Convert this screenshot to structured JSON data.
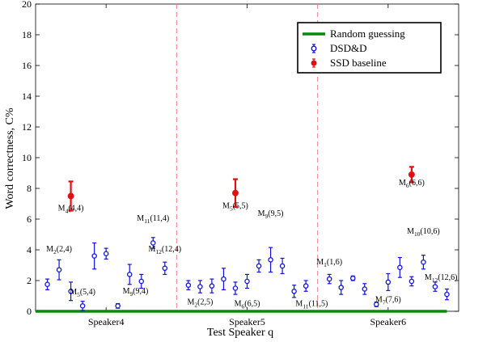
{
  "chart_data": {
    "type": "scatter",
    "title": "",
    "xlabel": "Test Speaker q",
    "ylabel": "Word correctness, C%",
    "ylim": [
      0,
      20
    ],
    "yticks": [
      0,
      2,
      4,
      6,
      8,
      10,
      12,
      14,
      16,
      18,
      20
    ],
    "xlim": [
      0,
      36
    ],
    "categories": [
      "Speaker4",
      "Speaker5",
      "Speaker6"
    ],
    "category_positions": [
      6,
      18,
      30
    ],
    "dividers": [
      12,
      24
    ],
    "grid": false,
    "legend_position": "top-right",
    "colors": {
      "random": "#0a8a0a",
      "dsdd": "#1010e0",
      "ssd": "#e01010",
      "divider": "#f08080"
    },
    "series": [
      {
        "name": "Random guessing",
        "kind": "line",
        "x": [
          0,
          35
        ],
        "y": [
          0,
          0
        ]
      },
      {
        "name": "DSD&D",
        "kind": "errorbar",
        "points": [
          {
            "x": 1,
            "y": 1.75,
            "err": 0.35
          },
          {
            "x": 2,
            "y": 2.7,
            "err": 0.65
          },
          {
            "x": 3,
            "y": 1.3,
            "err": 0.6
          },
          {
            "x": 4,
            "y": 0.35,
            "err": 0.3
          },
          {
            "x": 5,
            "y": 3.6,
            "err": 0.85
          },
          {
            "x": 6,
            "y": 3.75,
            "err": 0.35
          },
          {
            "x": 7,
            "y": 0.35,
            "err": 0.15
          },
          {
            "x": 8,
            "y": 2.4,
            "err": 0.65
          },
          {
            "x": 9,
            "y": 1.95,
            "err": 0.45
          },
          {
            "x": 10,
            "y": 4.45,
            "err": 0.35
          },
          {
            "x": 11,
            "y": 2.8,
            "err": 0.4
          },
          {
            "x": 13,
            "y": 1.7,
            "err": 0.3
          },
          {
            "x": 14,
            "y": 1.6,
            "err": 0.4
          },
          {
            "x": 15,
            "y": 1.65,
            "err": 0.45
          },
          {
            "x": 16,
            "y": 2.1,
            "err": 0.7
          },
          {
            "x": 17,
            "y": 1.5,
            "err": 0.4
          },
          {
            "x": 18,
            "y": 1.95,
            "err": 0.45
          },
          {
            "x": 19,
            "y": 2.95,
            "err": 0.4
          },
          {
            "x": 20,
            "y": 3.35,
            "err": 0.8
          },
          {
            "x": 21,
            "y": 2.95,
            "err": 0.5
          },
          {
            "x": 22,
            "y": 1.3,
            "err": 0.4
          },
          {
            "x": 23,
            "y": 1.65,
            "err": 0.35
          },
          {
            "x": 25,
            "y": 2.1,
            "err": 0.3
          },
          {
            "x": 26,
            "y": 1.55,
            "err": 0.45
          },
          {
            "x": 27,
            "y": 2.15,
            "err": 0.15
          },
          {
            "x": 28,
            "y": 1.45,
            "err": 0.35
          },
          {
            "x": 29,
            "y": 0.45,
            "err": 0.15
          },
          {
            "x": 30,
            "y": 1.9,
            "err": 0.55
          },
          {
            "x": 31,
            "y": 2.85,
            "err": 0.65
          },
          {
            "x": 32,
            "y": 1.95,
            "err": 0.3
          },
          {
            "x": 33,
            "y": 3.2,
            "err": 0.45
          },
          {
            "x": 34,
            "y": 1.6,
            "err": 0.3
          },
          {
            "x": 35,
            "y": 1.1,
            "err": 0.35
          }
        ]
      },
      {
        "name": "SSD baseline",
        "kind": "errorbar",
        "points": [
          {
            "x": 3,
            "y": 7.5,
            "err": 0.95
          },
          {
            "x": 17,
            "y": 7.7,
            "err": 0.9
          },
          {
            "x": 32,
            "y": 8.9,
            "err": 0.5
          }
        ]
      }
    ],
    "annotations": [
      {
        "main": "M",
        "sub": "4",
        "rest": "(4,4)",
        "x": 3,
        "y": 6.55
      },
      {
        "main": "M",
        "sub": "5",
        "rest": "(5,5)",
        "x": 17,
        "y": 6.7
      },
      {
        "main": "M",
        "sub": "6",
        "rest": "(6,6)",
        "x": 32,
        "y": 8.2
      },
      {
        "main": "M",
        "sub": "2",
        "rest": "(2,4)",
        "x": 2,
        "y": 3.9
      },
      {
        "main": "M",
        "sub": "5",
        "rest": "(5,4)",
        "x": 4,
        "y": 1.1
      },
      {
        "main": "M",
        "sub": "9",
        "rest": "(9,4)",
        "x": 8.5,
        "y": 1.15
      },
      {
        "main": "M",
        "sub": "11",
        "rest": "(11,4)",
        "x": 10,
        "y": 5.9
      },
      {
        "main": "M",
        "sub": "12",
        "rest": "(12,4)",
        "x": 11,
        "y": 3.9
      },
      {
        "main": "M",
        "sub": "2",
        "rest": "(2,5)",
        "x": 14,
        "y": 0.45
      },
      {
        "main": "M",
        "sub": "6",
        "rest": "(6,5)",
        "x": 18,
        "y": 0.35
      },
      {
        "main": "M",
        "sub": "9",
        "rest": "(9,5)",
        "x": 20,
        "y": 6.2
      },
      {
        "main": "M",
        "sub": "11",
        "rest": "(11,5)",
        "x": 23.5,
        "y": 0.35
      },
      {
        "main": "M",
        "sub": "1",
        "rest": "(1,6)",
        "x": 25,
        "y": 3.05
      },
      {
        "main": "M",
        "sub": "7",
        "rest": "(7,6)",
        "x": 30,
        "y": 0.6
      },
      {
        "main": "M",
        "sub": "10",
        "rest": "(10,6)",
        "x": 33,
        "y": 5.05
      },
      {
        "main": "M",
        "sub": "12",
        "rest": "(12,6)",
        "x": 34.5,
        "y": 2.05
      }
    ]
  }
}
